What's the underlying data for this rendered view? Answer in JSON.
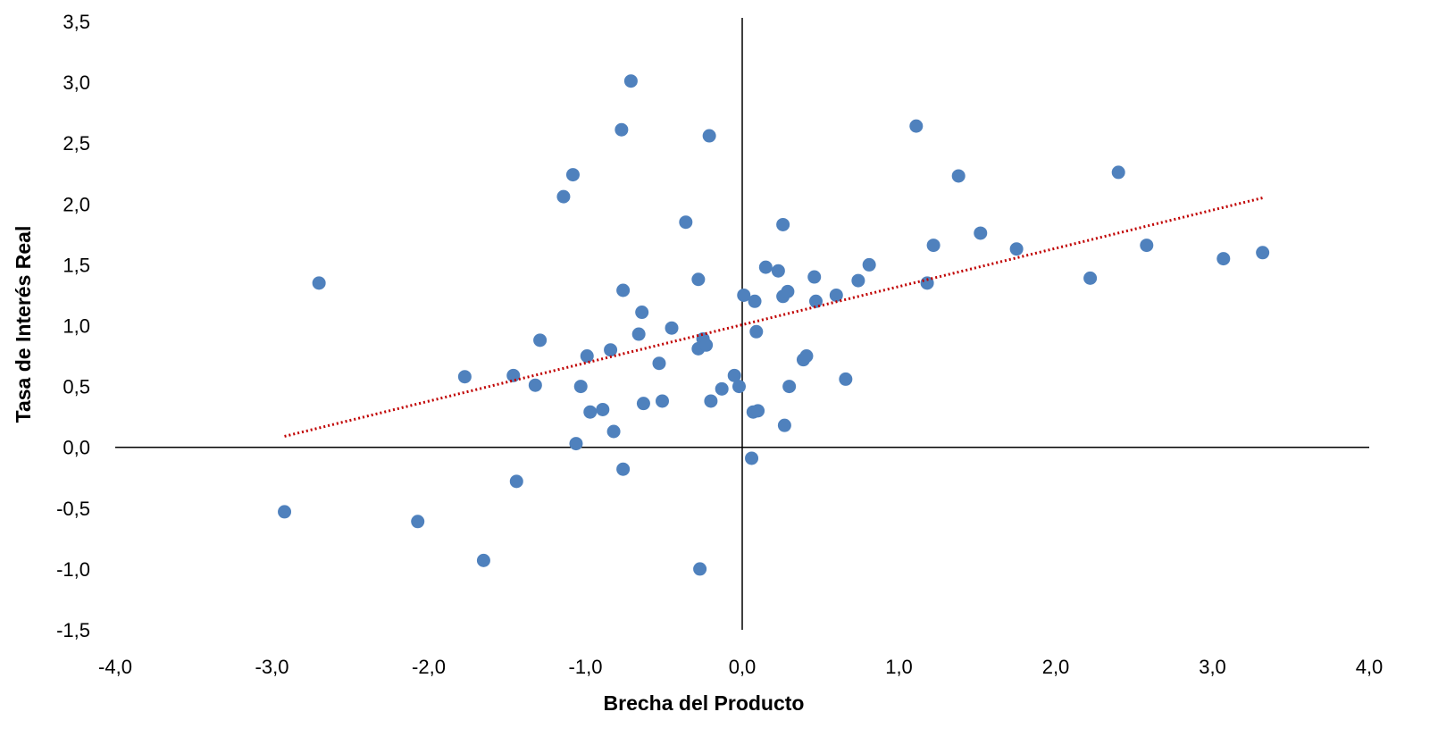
{
  "chart_data": {
    "type": "scatter",
    "title": "",
    "xlabel": "Brecha del Producto",
    "ylabel": "Tasa de Interés Real",
    "xlim": [
      -4.0,
      4.0
    ],
    "ylim": [
      -1.5,
      3.5
    ],
    "x_ticks": [
      -4.0,
      -3.0,
      -2.0,
      -1.0,
      0.0,
      1.0,
      2.0,
      3.0,
      4.0
    ],
    "y_ticks": [
      -1.5,
      -1.0,
      -0.5,
      0.0,
      0.5,
      1.0,
      1.5,
      2.0,
      2.5,
      3.0,
      3.5
    ],
    "tick_decimal_separator": ",",
    "grid": false,
    "legend": "none",
    "colors": {
      "points": "#4f81bd",
      "trendline": "#c00000",
      "axes": "#000000"
    },
    "trendline": {
      "style": "dotted",
      "x": [
        -2.92,
        3.32
      ],
      "y": [
        0.09,
        2.05
      ]
    },
    "points": [
      {
        "x": -2.92,
        "y": -0.53
      },
      {
        "x": -2.7,
        "y": 1.35
      },
      {
        "x": -2.07,
        "y": -0.61
      },
      {
        "x": -1.77,
        "y": 0.58
      },
      {
        "x": -1.65,
        "y": -0.93
      },
      {
        "x": -1.46,
        "y": 0.59
      },
      {
        "x": -1.44,
        "y": -0.28
      },
      {
        "x": -1.32,
        "y": 0.51
      },
      {
        "x": -1.29,
        "y": 0.88
      },
      {
        "x": -1.14,
        "y": 2.06
      },
      {
        "x": -1.08,
        "y": 2.24
      },
      {
        "x": -1.06,
        "y": 0.03
      },
      {
        "x": -1.03,
        "y": 0.5
      },
      {
        "x": -0.99,
        "y": 0.75
      },
      {
        "x": -0.97,
        "y": 0.29
      },
      {
        "x": -0.89,
        "y": 0.31
      },
      {
        "x": -0.84,
        "y": 0.8
      },
      {
        "x": -0.82,
        "y": 0.13
      },
      {
        "x": -0.77,
        "y": 2.61
      },
      {
        "x": -0.76,
        "y": 1.29
      },
      {
        "x": -0.76,
        "y": -0.18
      },
      {
        "x": -0.71,
        "y": 3.01
      },
      {
        "x": -0.66,
        "y": 0.93
      },
      {
        "x": -0.64,
        "y": 1.11
      },
      {
        "x": -0.63,
        "y": 0.36
      },
      {
        "x": -0.53,
        "y": 0.69
      },
      {
        "x": -0.51,
        "y": 0.38
      },
      {
        "x": -0.45,
        "y": 0.98
      },
      {
        "x": -0.36,
        "y": 1.85
      },
      {
        "x": -0.28,
        "y": 0.81
      },
      {
        "x": -0.28,
        "y": 1.38
      },
      {
        "x": -0.27,
        "y": -1.0
      },
      {
        "x": -0.25,
        "y": 0.89
      },
      {
        "x": -0.23,
        "y": 0.84
      },
      {
        "x": -0.21,
        "y": 2.56
      },
      {
        "x": -0.2,
        "y": 0.38
      },
      {
        "x": -0.13,
        "y": 0.48
      },
      {
        "x": -0.05,
        "y": 0.59
      },
      {
        "x": -0.02,
        "y": 0.5
      },
      {
        "x": 0.01,
        "y": 1.25
      },
      {
        "x": 0.06,
        "y": -0.09
      },
      {
        "x": 0.07,
        "y": 0.29
      },
      {
        "x": 0.08,
        "y": 1.2
      },
      {
        "x": 0.09,
        "y": 0.95
      },
      {
        "x": 0.1,
        "y": 0.3
      },
      {
        "x": 0.15,
        "y": 1.48
      },
      {
        "x": 0.23,
        "y": 1.45
      },
      {
        "x": 0.26,
        "y": 1.83
      },
      {
        "x": 0.26,
        "y": 1.24
      },
      {
        "x": 0.27,
        "y": 0.18
      },
      {
        "x": 0.29,
        "y": 1.28
      },
      {
        "x": 0.3,
        "y": 0.5
      },
      {
        "x": 0.39,
        "y": 0.72
      },
      {
        "x": 0.41,
        "y": 0.75
      },
      {
        "x": 0.46,
        "y": 1.4
      },
      {
        "x": 0.47,
        "y": 1.2
      },
      {
        "x": 0.6,
        "y": 1.25
      },
      {
        "x": 0.66,
        "y": 0.56
      },
      {
        "x": 0.74,
        "y": 1.37
      },
      {
        "x": 0.81,
        "y": 1.5
      },
      {
        "x": 1.11,
        "y": 2.64
      },
      {
        "x": 1.18,
        "y": 1.35
      },
      {
        "x": 1.22,
        "y": 1.66
      },
      {
        "x": 1.38,
        "y": 2.23
      },
      {
        "x": 1.52,
        "y": 1.76
      },
      {
        "x": 1.75,
        "y": 1.63
      },
      {
        "x": 2.22,
        "y": 1.39
      },
      {
        "x": 2.4,
        "y": 2.26
      },
      {
        "x": 2.58,
        "y": 1.66
      },
      {
        "x": 3.07,
        "y": 1.55
      },
      {
        "x": 3.32,
        "y": 1.6
      }
    ]
  }
}
